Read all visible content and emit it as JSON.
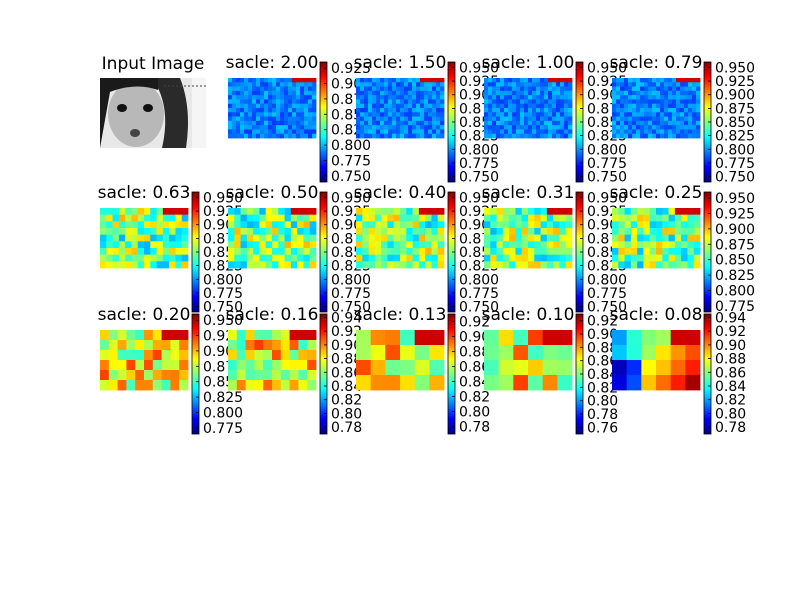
{
  "figure": {
    "input_title": "Input Image",
    "colormap_stops": [
      "#00007f",
      "#0000ff",
      "#007fff",
      "#00ffff",
      "#7fff7f",
      "#ffff00",
      "#ff7f00",
      "#ff0000",
      "#7f0000"
    ]
  },
  "chart_data": [
    {
      "type": "image",
      "title": "Input Image"
    },
    {
      "type": "heatmap",
      "title": "sacle: 2.00",
      "colorbar_ticks": [
        "0.925",
        "0.900",
        "0.875",
        "0.850",
        "0.825",
        "0.800",
        "0.775",
        "0.750"
      ],
      "clim": [
        0.74,
        0.935
      ],
      "pattern": "fine",
      "seed": 11,
      "hotspot": "top-right"
    },
    {
      "type": "heatmap",
      "title": "sacle: 1.50",
      "colorbar_ticks": [
        "0.950",
        "0.925",
        "0.900",
        "0.875",
        "0.850",
        "0.825",
        "0.800",
        "0.775",
        "0.750"
      ],
      "clim": [
        0.74,
        0.96
      ],
      "pattern": "fine",
      "seed": 12,
      "hotspot": "top-right"
    },
    {
      "type": "heatmap",
      "title": "sacle: 1.00",
      "colorbar_ticks": [
        "0.950",
        "0.925",
        "0.900",
        "0.875",
        "0.850",
        "0.825",
        "0.800",
        "0.775",
        "0.750"
      ],
      "clim": [
        0.74,
        0.96
      ],
      "pattern": "fine",
      "seed": 13,
      "hotspot": "top-right"
    },
    {
      "type": "heatmap",
      "title": "sacle: 0.79",
      "colorbar_ticks": [
        "0.950",
        "0.925",
        "0.900",
        "0.875",
        "0.850",
        "0.825",
        "0.800",
        "0.775",
        "0.750"
      ],
      "clim": [
        0.74,
        0.96
      ],
      "pattern": "fine",
      "seed": 14,
      "hotspot": "top-right"
    },
    {
      "type": "heatmap",
      "title": "sacle: 0.63",
      "colorbar_ticks": [
        "0.950",
        "0.925",
        "0.900",
        "0.875",
        "0.850",
        "0.825",
        "0.800",
        "0.775",
        "0.750"
      ],
      "clim": [
        0.74,
        0.96
      ],
      "pattern": "medium",
      "seed": 21,
      "hotspot": "top-right"
    },
    {
      "type": "heatmap",
      "title": "sacle: 0.50",
      "colorbar_ticks": [
        "0.950",
        "0.925",
        "0.900",
        "0.875",
        "0.850",
        "0.825",
        "0.800",
        "0.775",
        "0.750"
      ],
      "clim": [
        0.74,
        0.96
      ],
      "pattern": "medium",
      "seed": 22,
      "hotspot": "top-right"
    },
    {
      "type": "heatmap",
      "title": "sacle: 0.40",
      "colorbar_ticks": [
        "0.950",
        "0.925",
        "0.900",
        "0.875",
        "0.850",
        "0.825",
        "0.800",
        "0.775",
        "0.750"
      ],
      "clim": [
        0.74,
        0.96
      ],
      "pattern": "medium",
      "seed": 23,
      "hotspot": "top-right"
    },
    {
      "type": "heatmap",
      "title": "sacle: 0.31",
      "colorbar_ticks": [
        "0.950",
        "0.925",
        "0.900",
        "0.875",
        "0.850",
        "0.825",
        "0.800",
        "0.775",
        "0.750"
      ],
      "clim": [
        0.74,
        0.96
      ],
      "pattern": "medium",
      "seed": 24,
      "hotspot": "top-right"
    },
    {
      "type": "heatmap",
      "title": "sacle: 0.25",
      "colorbar_ticks": [
        "0.950",
        "0.925",
        "0.900",
        "0.875",
        "0.850",
        "0.825",
        "0.800",
        "0.775"
      ],
      "clim": [
        0.765,
        0.96
      ],
      "pattern": "medium",
      "seed": 25,
      "hotspot": "top-right"
    },
    {
      "type": "heatmap",
      "title": "sacle: 0.20",
      "colorbar_ticks": [
        "0.950",
        "0.925",
        "0.900",
        "0.875",
        "0.850",
        "0.825",
        "0.800",
        "0.775"
      ],
      "clim": [
        0.765,
        0.96
      ],
      "pattern": "coarse",
      "seed": 31,
      "hotspot": "top-right"
    },
    {
      "type": "heatmap",
      "title": "sacle: 0.16",
      "colorbar_ticks": [
        "0.94",
        "0.92",
        "0.90",
        "0.88",
        "0.86",
        "0.84",
        "0.82",
        "0.80",
        "0.78"
      ],
      "clim": [
        0.77,
        0.945
      ],
      "pattern": "coarse",
      "seed": 32,
      "hotspot": "top-right"
    },
    {
      "type": "heatmap",
      "title": "sacle: 0.13",
      "colorbar_ticks": [
        "0.92",
        "0.90",
        "0.88",
        "0.86",
        "0.84",
        "0.82",
        "0.80",
        "0.78"
      ],
      "clim": [
        0.77,
        0.93
      ],
      "pattern": "blocky",
      "seed": 33,
      "hotspot": "top-right"
    },
    {
      "type": "heatmap",
      "title": "sacle: 0.10",
      "colorbar_ticks": [
        "0.92",
        "0.90",
        "0.88",
        "0.86",
        "0.84",
        "0.82",
        "0.80",
        "0.78",
        "0.76"
      ],
      "clim": [
        0.75,
        0.93
      ],
      "pattern": "blocky",
      "seed": 34,
      "hotspot": "top-right"
    },
    {
      "type": "heatmap",
      "title": "sacle: 0.08",
      "colorbar_ticks": [
        "0.94",
        "0.92",
        "0.90",
        "0.88",
        "0.86",
        "0.84",
        "0.82",
        "0.80",
        "0.78"
      ],
      "clim": [
        0.77,
        0.945
      ],
      "pattern": "smooth",
      "seed": 35,
      "hotspot": "top-right"
    }
  ]
}
